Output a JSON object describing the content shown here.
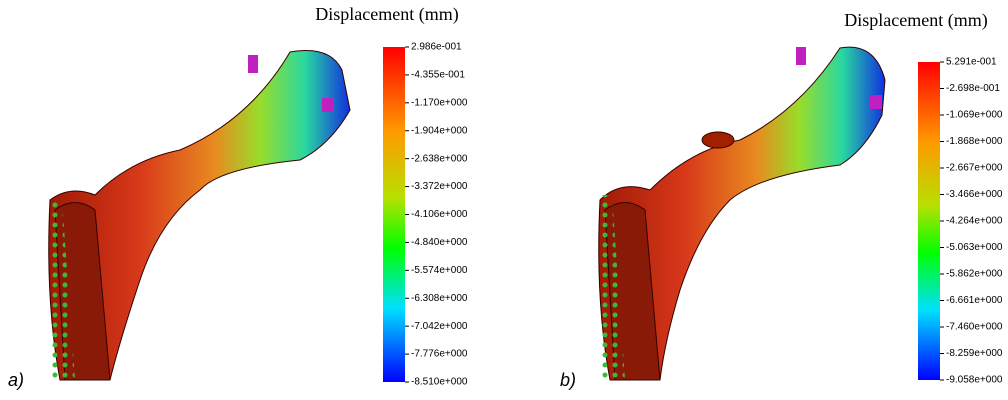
{
  "panels": [
    {
      "label": "a)",
      "legend": {
        "title": "Displacement (mm)",
        "labels": [
          "2.986e-001",
          "-4.355e-001",
          "-1.170e+000",
          "-1.904e+000",
          "-2.638e+000",
          "-3.372e+000",
          "-4.106e+000",
          "-4.840e+000",
          "-5.574e+000",
          "-6.308e+000",
          "-7.042e+000",
          "-7.776e+000",
          "-8.510e+000"
        ]
      }
    },
    {
      "label": "b)",
      "legend": {
        "title": "Displacement (mm)",
        "labels": [
          "5.291e-001",
          "-2.698e-001",
          "-1.069e+000",
          "-1.868e+000",
          "-2.667e+000",
          "-3.466e+000",
          "-4.264e+000",
          "-5.063e+000",
          "-5.862e+000",
          "-6.661e+000",
          "-7.460e+000",
          "-8.259e+000",
          "-9.058e+000"
        ]
      }
    }
  ]
}
